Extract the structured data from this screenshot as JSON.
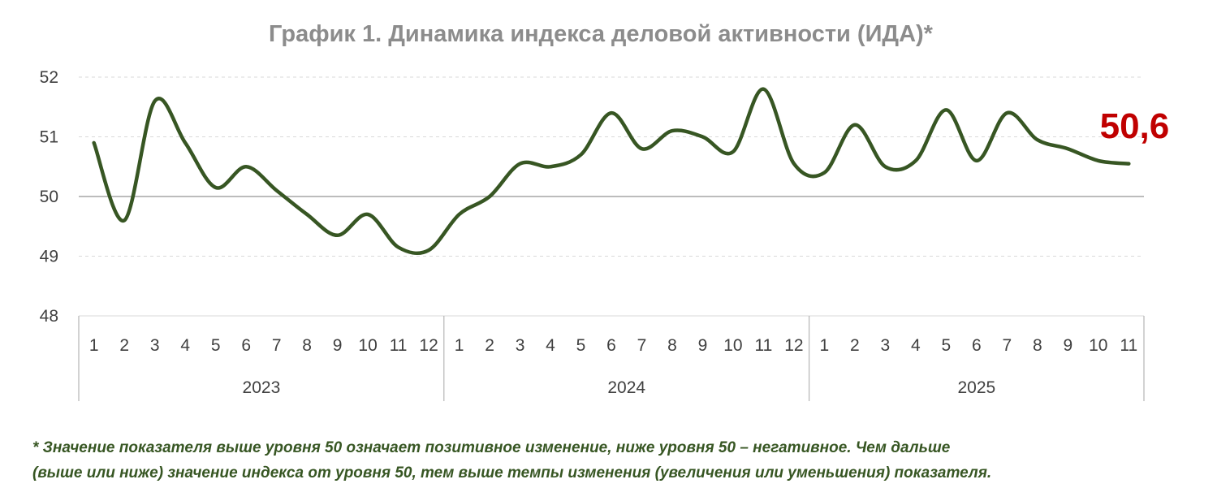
{
  "chart_data": {
    "type": "line",
    "title": "График 1. Динамика индекса деловой активности (ИДА)*",
    "ylim": [
      48,
      52
    ],
    "yticks": [
      48,
      49,
      50,
      51,
      52
    ],
    "ytick_labels": [
      "48",
      "49",
      "50",
      "51",
      "52"
    ],
    "grid": "horizontal dashed",
    "reference_line": 50,
    "categories": [
      "1",
      "2",
      "3",
      "4",
      "5",
      "6",
      "7",
      "8",
      "9",
      "10",
      "11",
      "12",
      "1",
      "2",
      "3",
      "4",
      "5",
      "6",
      "7",
      "8",
      "9",
      "10",
      "11",
      "12",
      "1",
      "2",
      "3",
      "4",
      "5",
      "6",
      "7",
      "8",
      "9",
      "10",
      "11"
    ],
    "groups": [
      {
        "label": "2023",
        "count": 12
      },
      {
        "label": "2024",
        "count": 12
      },
      {
        "label": "2025",
        "count": 11
      }
    ],
    "series": [
      {
        "color": "#375623",
        "values": [
          50.9,
          49.6,
          51.6,
          50.9,
          50.15,
          50.5,
          50.1,
          49.7,
          49.35,
          49.7,
          49.15,
          49.1,
          49.7,
          50.0,
          50.55,
          50.5,
          50.7,
          51.4,
          50.8,
          51.1,
          51.0,
          50.75,
          51.8,
          50.55,
          50.4,
          51.2,
          50.5,
          50.6,
          51.45,
          50.6,
          51.4,
          50.95,
          50.8,
          50.6,
          50.55
        ]
      }
    ],
    "last_value_label": "50,6"
  },
  "footnote": {
    "line1": "* Значение показателя выше уровня 50 означает позитивное изменение, ниже уровня 50 – негативное. Чем дальше",
    "line2": "(выше или ниже) значение индекса от уровня 50, тем выше темпы изменения (увеличения или уменьшения) показателя."
  }
}
